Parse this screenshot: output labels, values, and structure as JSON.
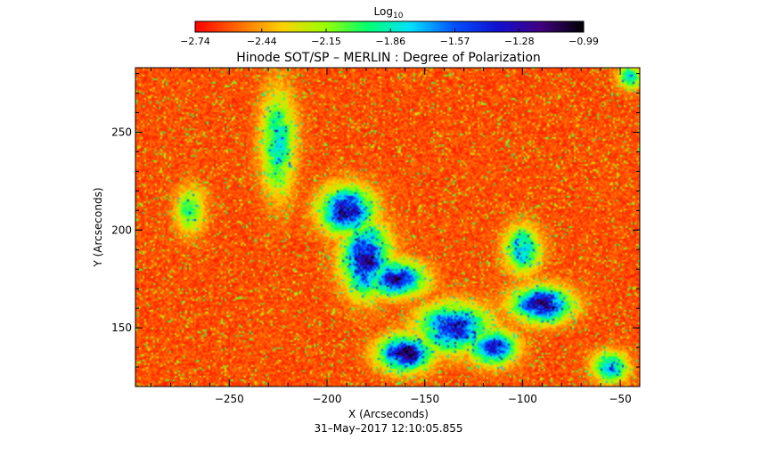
{
  "chart_data": {
    "type": "heatmap",
    "title": "Hinode SOT/SP – MERLIN : Degree of Polarization",
    "xlabel": "X (Arcseconds)",
    "ylabel": "Y (Arcseconds)",
    "timestamp": "31–May–2017 12:10:05.855",
    "xlim": [
      -298,
      -40
    ],
    "ylim": [
      120,
      283
    ],
    "x_ticks": [
      -250,
      -200,
      -150,
      -100,
      -50
    ],
    "y_ticks": [
      150,
      200,
      250
    ],
    "x_tick_labels": [
      "−250",
      "−200",
      "−150",
      "−100",
      "−50"
    ],
    "y_tick_labels": [
      "150",
      "200",
      "250"
    ],
    "colorbar": {
      "label_base": "Log",
      "label_sub": "10",
      "range": [
        -2.74,
        -0.99
      ],
      "ticks": [
        -2.74,
        -2.44,
        -2.15,
        -1.86,
        -1.57,
        -1.28,
        -0.99
      ],
      "tick_labels": [
        "−2.74",
        "−2.44",
        "−2.15",
        "−1.86",
        "−1.57",
        "−1.28",
        "−0.99"
      ],
      "colormap": [
        "#ff0000",
        "#ff6a00",
        "#ffd000",
        "#9bff00",
        "#00ff70",
        "#00e0ff",
        "#0050ff",
        "#1010d0",
        "#400080",
        "#000000"
      ]
    },
    "background_level": -2.6,
    "active_regions": [
      {
        "x": -180,
        "y": 185,
        "sx": 8,
        "sy": 12,
        "peak": -1.1
      },
      {
        "x": -190,
        "y": 210,
        "sx": 9,
        "sy": 8,
        "peak": -1.15
      },
      {
        "x": -165,
        "y": 175,
        "sx": 10,
        "sy": 6,
        "peak": -1.2
      },
      {
        "x": -160,
        "y": 137,
        "sx": 9,
        "sy": 6,
        "peak": -1.05
      },
      {
        "x": -135,
        "y": 150,
        "sx": 12,
        "sy": 8,
        "peak": -1.25
      },
      {
        "x": -115,
        "y": 140,
        "sx": 8,
        "sy": 6,
        "peak": -1.3
      },
      {
        "x": -90,
        "y": 162,
        "sx": 10,
        "sy": 6,
        "peak": -1.15
      },
      {
        "x": -100,
        "y": 190,
        "sx": 6,
        "sy": 8,
        "peak": -1.6
      },
      {
        "x": -55,
        "y": 130,
        "sx": 6,
        "sy": 5,
        "peak": -1.55
      },
      {
        "x": -225,
        "y": 245,
        "sx": 6,
        "sy": 18,
        "peak": -1.75
      },
      {
        "x": -270,
        "y": 210,
        "sx": 5,
        "sy": 8,
        "peak": -1.9
      },
      {
        "x": -45,
        "y": 278,
        "sx": 4,
        "sy": 4,
        "peak": -1.7
      }
    ]
  }
}
